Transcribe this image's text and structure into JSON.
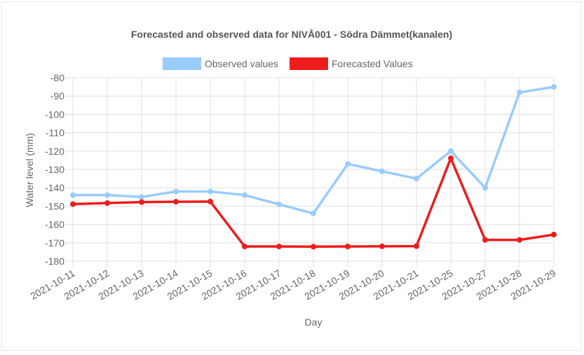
{
  "chart_data": {
    "type": "line",
    "title": "Forecasted and observed data for NIVÅ001 - Södra Dämmet(kanalen)",
    "xlabel": "Day",
    "ylabel": "Water level (mm)",
    "ylim": [
      -180,
      -80
    ],
    "yticks": [
      -80,
      -90,
      -100,
      -110,
      -120,
      -130,
      -140,
      -150,
      -160,
      -170,
      -180
    ],
    "grid": true,
    "legend_position": "top",
    "categories": [
      "2021-10-11",
      "2021-10-12",
      "2021-10-13",
      "2021-10-14",
      "2021-10-15",
      "2021-10-16",
      "2021-10-17",
      "2021-10-18",
      "2021-10-19",
      "2021-10-20",
      "2021-10-21",
      "2021-10-25",
      "2021-10-27",
      "2021-10-28",
      "2021-10-29"
    ],
    "series": [
      {
        "name": "Observed values",
        "color": "#99ccff",
        "values": [
          -144,
          -144,
          -145,
          -142,
          -142,
          -144,
          -149,
          -154,
          -127,
          -131,
          -135,
          -120,
          -140,
          -88,
          -85
        ]
      },
      {
        "name": "Forecasted Values",
        "color": "#ee1c1c",
        "values": [
          -148.9,
          -148.3,
          -147.8,
          -147.6,
          -147.5,
          -172,
          -172,
          -172.1,
          -172,
          -171.9,
          -171.8,
          -123.9,
          -168.4,
          -168.4,
          -165.5
        ]
      }
    ]
  }
}
